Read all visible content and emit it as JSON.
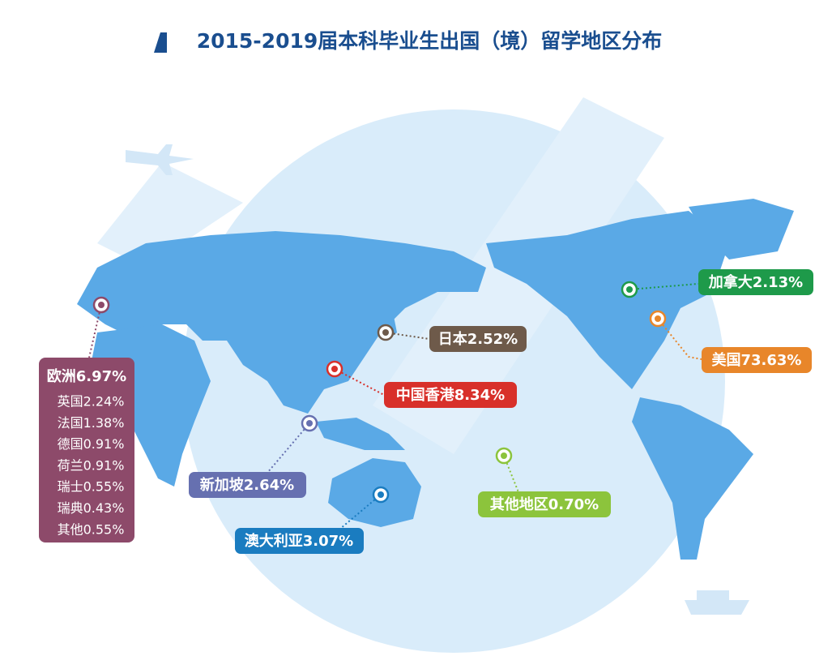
{
  "title": "2015-2019届本科毕业生出国（境）留学地区分布",
  "regions": [
    {
      "label": "加拿大2.13%"
    },
    {
      "label": "美国73.63%"
    },
    {
      "label": "日本2.52%"
    },
    {
      "label": "中国香港8.34%"
    },
    {
      "label": "新加坡2.64%"
    },
    {
      "label": "澳大利亚3.07%"
    },
    {
      "label": "其他地区0.70%"
    }
  ],
  "europe": {
    "label": "欧洲6.97%",
    "items": [
      "英国2.24%",
      "法国1.38%",
      "德国0.91%",
      "荷兰0.91%",
      "瑞士0.55%",
      "瑞典0.43%",
      "其他0.55%"
    ]
  }
}
